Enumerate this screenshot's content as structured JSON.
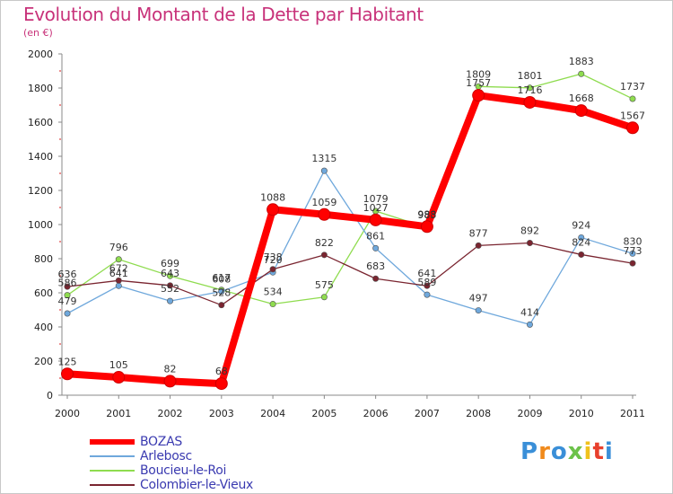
{
  "title": "Evolution du Montant de la Dette par Habitant",
  "unit_label": "(en €)",
  "logo": {
    "text": "Proxiti",
    "colors": [
      "#3a8fd8",
      "#f08a1c",
      "#3a8fd8",
      "#6cc24a",
      "#f0c21c",
      "#e8402c",
      "#3a8fd8"
    ]
  },
  "chart_data": {
    "type": "line",
    "title": "Evolution du Montant de la Dette par Habitant",
    "ylabel": "(en €)",
    "xlabel": "",
    "x": [
      "2000",
      "2001",
      "2002",
      "2003",
      "2004",
      "2005",
      "2006",
      "2007",
      "2008",
      "2009",
      "2010",
      "2011"
    ],
    "ylim": [
      0,
      2000
    ],
    "yticks": [
      0,
      200,
      400,
      600,
      800,
      1000,
      1200,
      1400,
      1600,
      1800,
      2000
    ],
    "grid": false,
    "legend_position": "bottom-left",
    "series": [
      {
        "name": "BOZAS",
        "color": "#ff0000",
        "values": [
          125,
          105,
          82,
          68,
          1088,
          1059,
          1027,
          988,
          1757,
          1716,
          1668,
          1567
        ]
      },
      {
        "name": "Arlebosc",
        "color": "#6fa8dc",
        "values": [
          479,
          641,
          552,
          608,
          720,
          1315,
          861,
          589,
          497,
          414,
          924,
          830
        ]
      },
      {
        "name": "Boucieu-le-Roi",
        "color": "#8fdc4f",
        "values": [
          586,
          796,
          699,
          617,
          534,
          575,
          1079,
          983,
          1809,
          1801,
          1883,
          1737
        ]
      },
      {
        "name": "Colombier-le-Vieux",
        "color": "#7a2530",
        "values": [
          636,
          672,
          643,
          528,
          738,
          822,
          683,
          641,
          877,
          892,
          824,
          773
        ]
      }
    ]
  }
}
